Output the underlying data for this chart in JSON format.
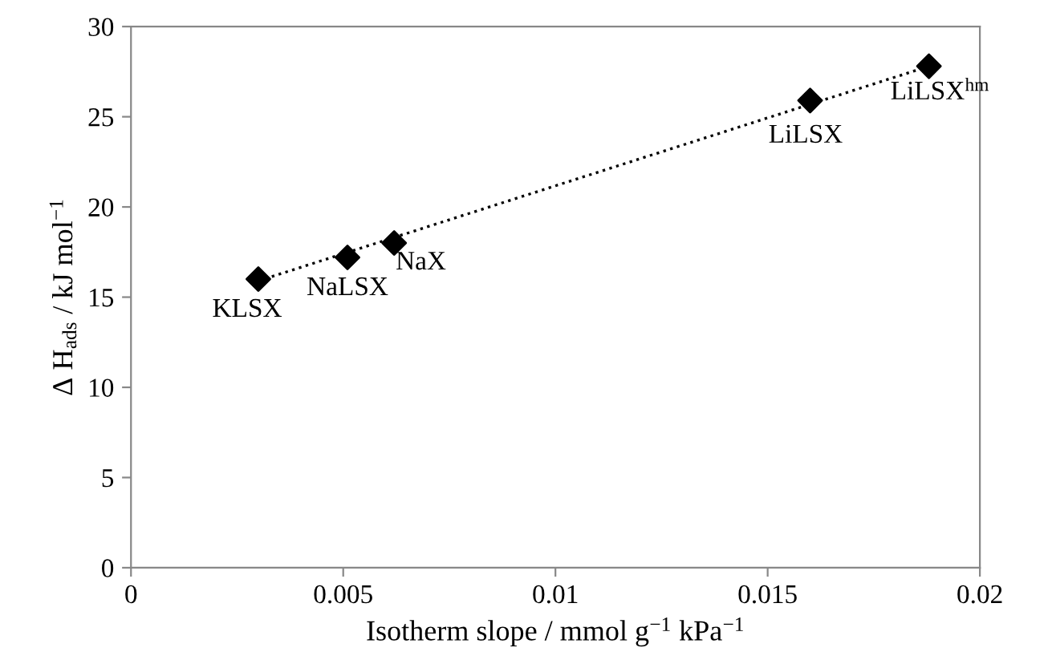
{
  "chart_data": {
    "type": "scatter",
    "xlabel": "Isotherm slope / mmol g$^{−1}$ kPa$^{−1}$",
    "ylabel": "Δ H$_{ads}$ / kJ mol$^{−1}$",
    "x": [
      0.003,
      0.0051,
      0.0062,
      0.016,
      0.0188
    ],
    "series": [
      {
        "color": "#000000",
        "marker": "diamond",
        "values": [
          16.0,
          17.2,
          18.0,
          25.9,
          27.8
        ]
      },
      {
        "type": "line",
        "color": "#000000",
        "line_style": "dotted",
        "marker": "none",
        "x": [
          0.003,
          0.0188
        ],
        "values": [
          15.9,
          27.8
        ]
      }
    ],
    "annotations": [
      {
        "text": "KLSX",
        "x": 0.003,
        "y": 16.0
      },
      {
        "text": "NaLSX",
        "x": 0.0051,
        "y": 17.2
      },
      {
        "text": "NaX",
        "x": 0.0062,
        "y": 18.0
      },
      {
        "text": "LiLSX",
        "x": 0.016,
        "y": 25.9
      },
      {
        "text": "LiLSX$^{hm}$",
        "x": 0.0188,
        "y": 27.8
      }
    ],
    "xlim": [
      0,
      0.02
    ],
    "xticks": [
      0,
      0.005,
      0.01,
      0.015,
      0.02
    ],
    "ylim": [
      0,
      30
    ],
    "yticks": [
      0,
      5,
      10,
      15,
      20,
      25,
      30
    ],
    "grid": false,
    "legend": false
  }
}
